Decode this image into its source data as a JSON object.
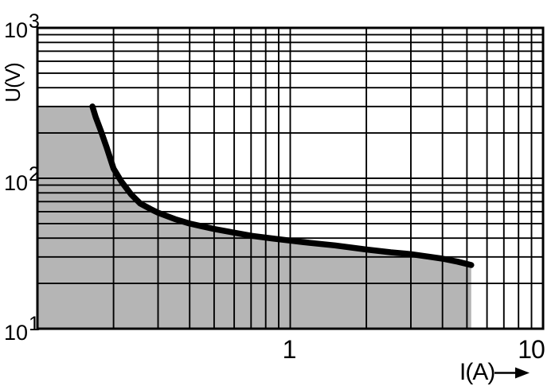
{
  "chart_data": {
    "type": "area",
    "title": "",
    "description": "Log-log limit curve of switching voltage U versus current I; permissible load area shaded gray below the curve",
    "x_axis": {
      "label": "I(A)",
      "scale": "log",
      "range": [
        0.1,
        10
      ],
      "ticks": [
        {
          "value": 1,
          "text": "1"
        },
        {
          "value": 10,
          "text": "10"
        }
      ]
    },
    "y_axis": {
      "label": "U(V)",
      "scale": "log",
      "range": [
        10,
        1000
      ],
      "ticks": [
        {
          "value": 1000,
          "base": "10",
          "exp": "3"
        },
        {
          "value": 100,
          "base": "10",
          "exp": "2"
        },
        {
          "value": 10,
          "base": "10",
          "exp": "1"
        }
      ]
    },
    "grid": {
      "minor_per_decade": true,
      "color": "#000000",
      "width": 1.9
    },
    "frame": {
      "color": "#000000",
      "width": 3
    },
    "series": [
      {
        "name": "load-limit-curve",
        "line_color": "#000000",
        "line_width": 7.5,
        "points": [
          [
            0.165,
            300
          ],
          [
            0.17,
            255
          ],
          [
            0.178,
            208
          ],
          [
            0.188,
            160
          ],
          [
            0.2,
            116
          ],
          [
            0.215,
            95
          ],
          [
            0.235,
            78
          ],
          [
            0.255,
            68
          ],
          [
            0.28,
            62.5
          ],
          [
            0.3,
            59
          ],
          [
            0.35,
            53.5
          ],
          [
            0.4,
            50
          ],
          [
            0.5,
            46
          ],
          [
            0.6,
            43.5
          ],
          [
            0.7,
            41.5
          ],
          [
            0.85,
            39.8
          ],
          [
            1.0,
            38.5
          ],
          [
            1.2,
            37.2
          ],
          [
            1.5,
            35.8
          ],
          [
            2.0,
            33.6
          ],
          [
            2.5,
            32.2
          ],
          [
            3.0,
            31.3
          ],
          [
            3.5,
            30.2
          ],
          [
            4.0,
            29.2
          ],
          [
            4.6,
            27.9
          ],
          [
            5.2,
            26.5
          ]
        ]
      }
    ],
    "shaded_region": {
      "name": "permissible-load-area",
      "fill_color": "#b5b5b5",
      "x_start": 0.1,
      "x_end": 5.2,
      "u_cap": 300,
      "u_bottom": 10
    }
  }
}
